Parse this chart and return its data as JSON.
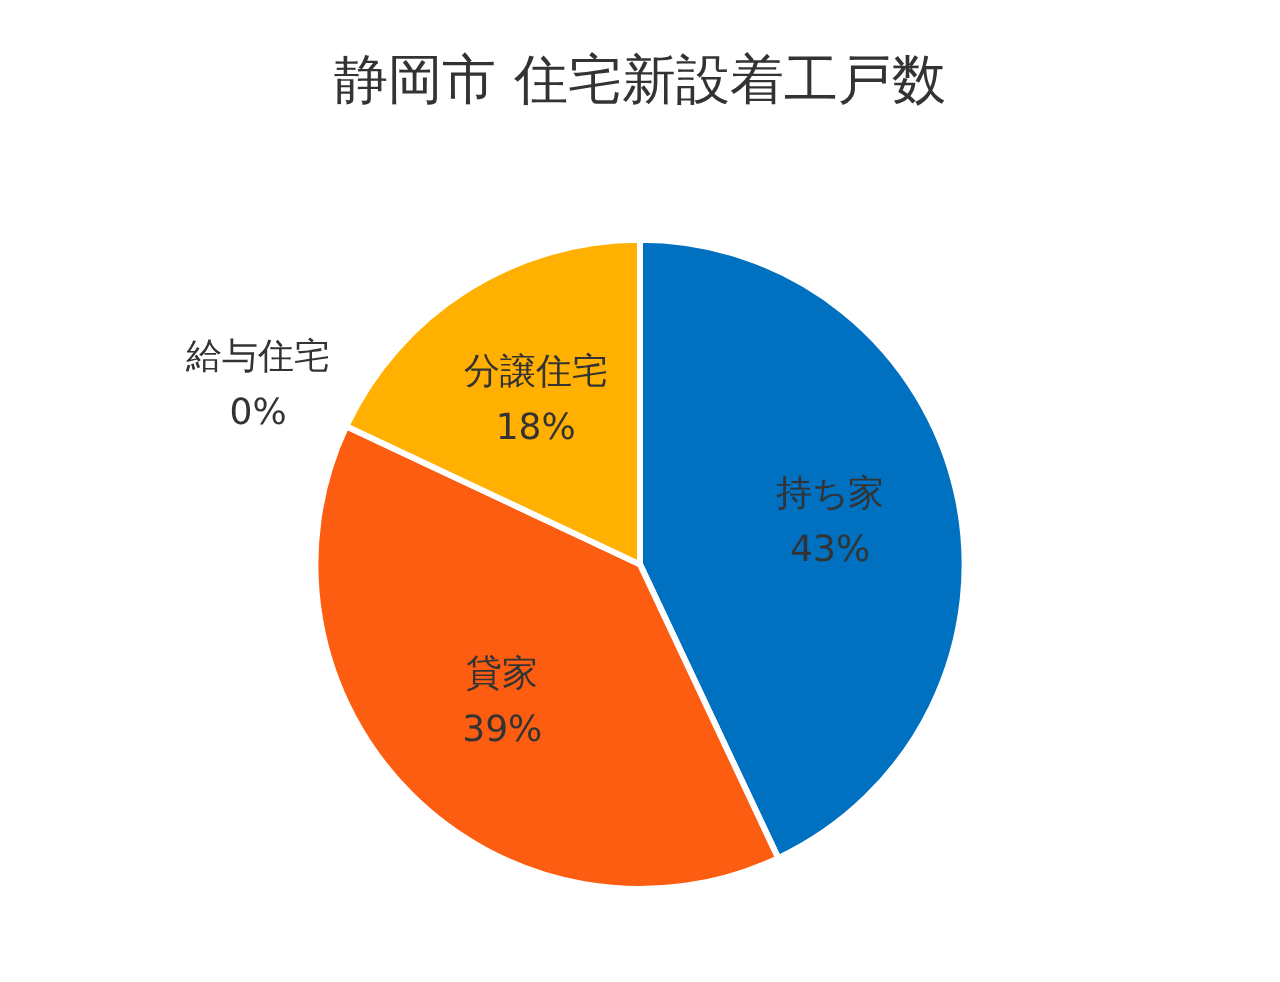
{
  "chart_data": {
    "type": "pie",
    "title": "静岡市 住宅新設着工戸数",
    "categories": [
      "持ち家",
      "貸家",
      "給与住宅",
      "分譲住宅"
    ],
    "values": [
      43,
      39,
      0,
      18
    ],
    "colors": [
      "#0070c0",
      "#fd5d10",
      "#a5a5a5",
      "#ffb000"
    ],
    "value_labels": [
      "43%",
      "39%",
      "0%",
      "18%"
    ],
    "legend": false
  }
}
